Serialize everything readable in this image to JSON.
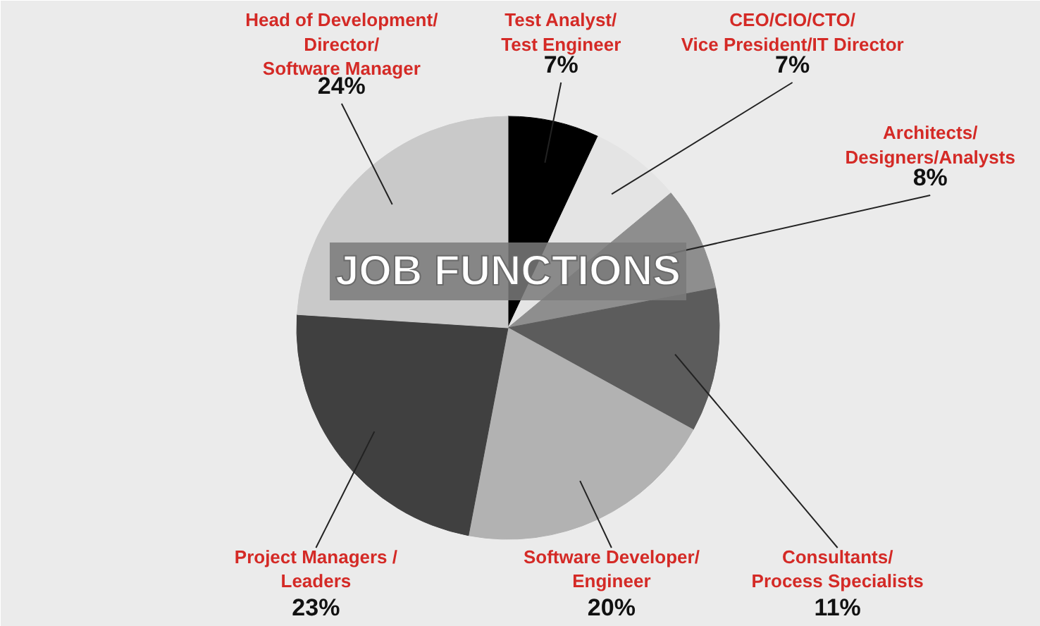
{
  "chart_data": {
    "type": "pie",
    "title": "JOB FUNCTIONS",
    "categories": [
      "Test Analyst/\nTest Engineer",
      "CEO/CIO/CTO/\nVice President/IT Director",
      "Architects/\nDesigners/Analysts",
      "Consultants/\nProcess Specialists",
      "Software Developer/\nEngineer",
      "Project Managers /\nLeaders",
      "Head of Development/\nDirector/\nSoftware Manager"
    ],
    "values": [
      7,
      7,
      8,
      11,
      20,
      23,
      24
    ],
    "colors": [
      "#000000",
      "#e4e4e4",
      "#8e8e8e",
      "#5c5c5c",
      "#b2b2b2",
      "#404040",
      "#c9c9c9"
    ],
    "value_labels": [
      "7%",
      "7%",
      "8%",
      "11%",
      "20%",
      "23%",
      "24%"
    ]
  }
}
